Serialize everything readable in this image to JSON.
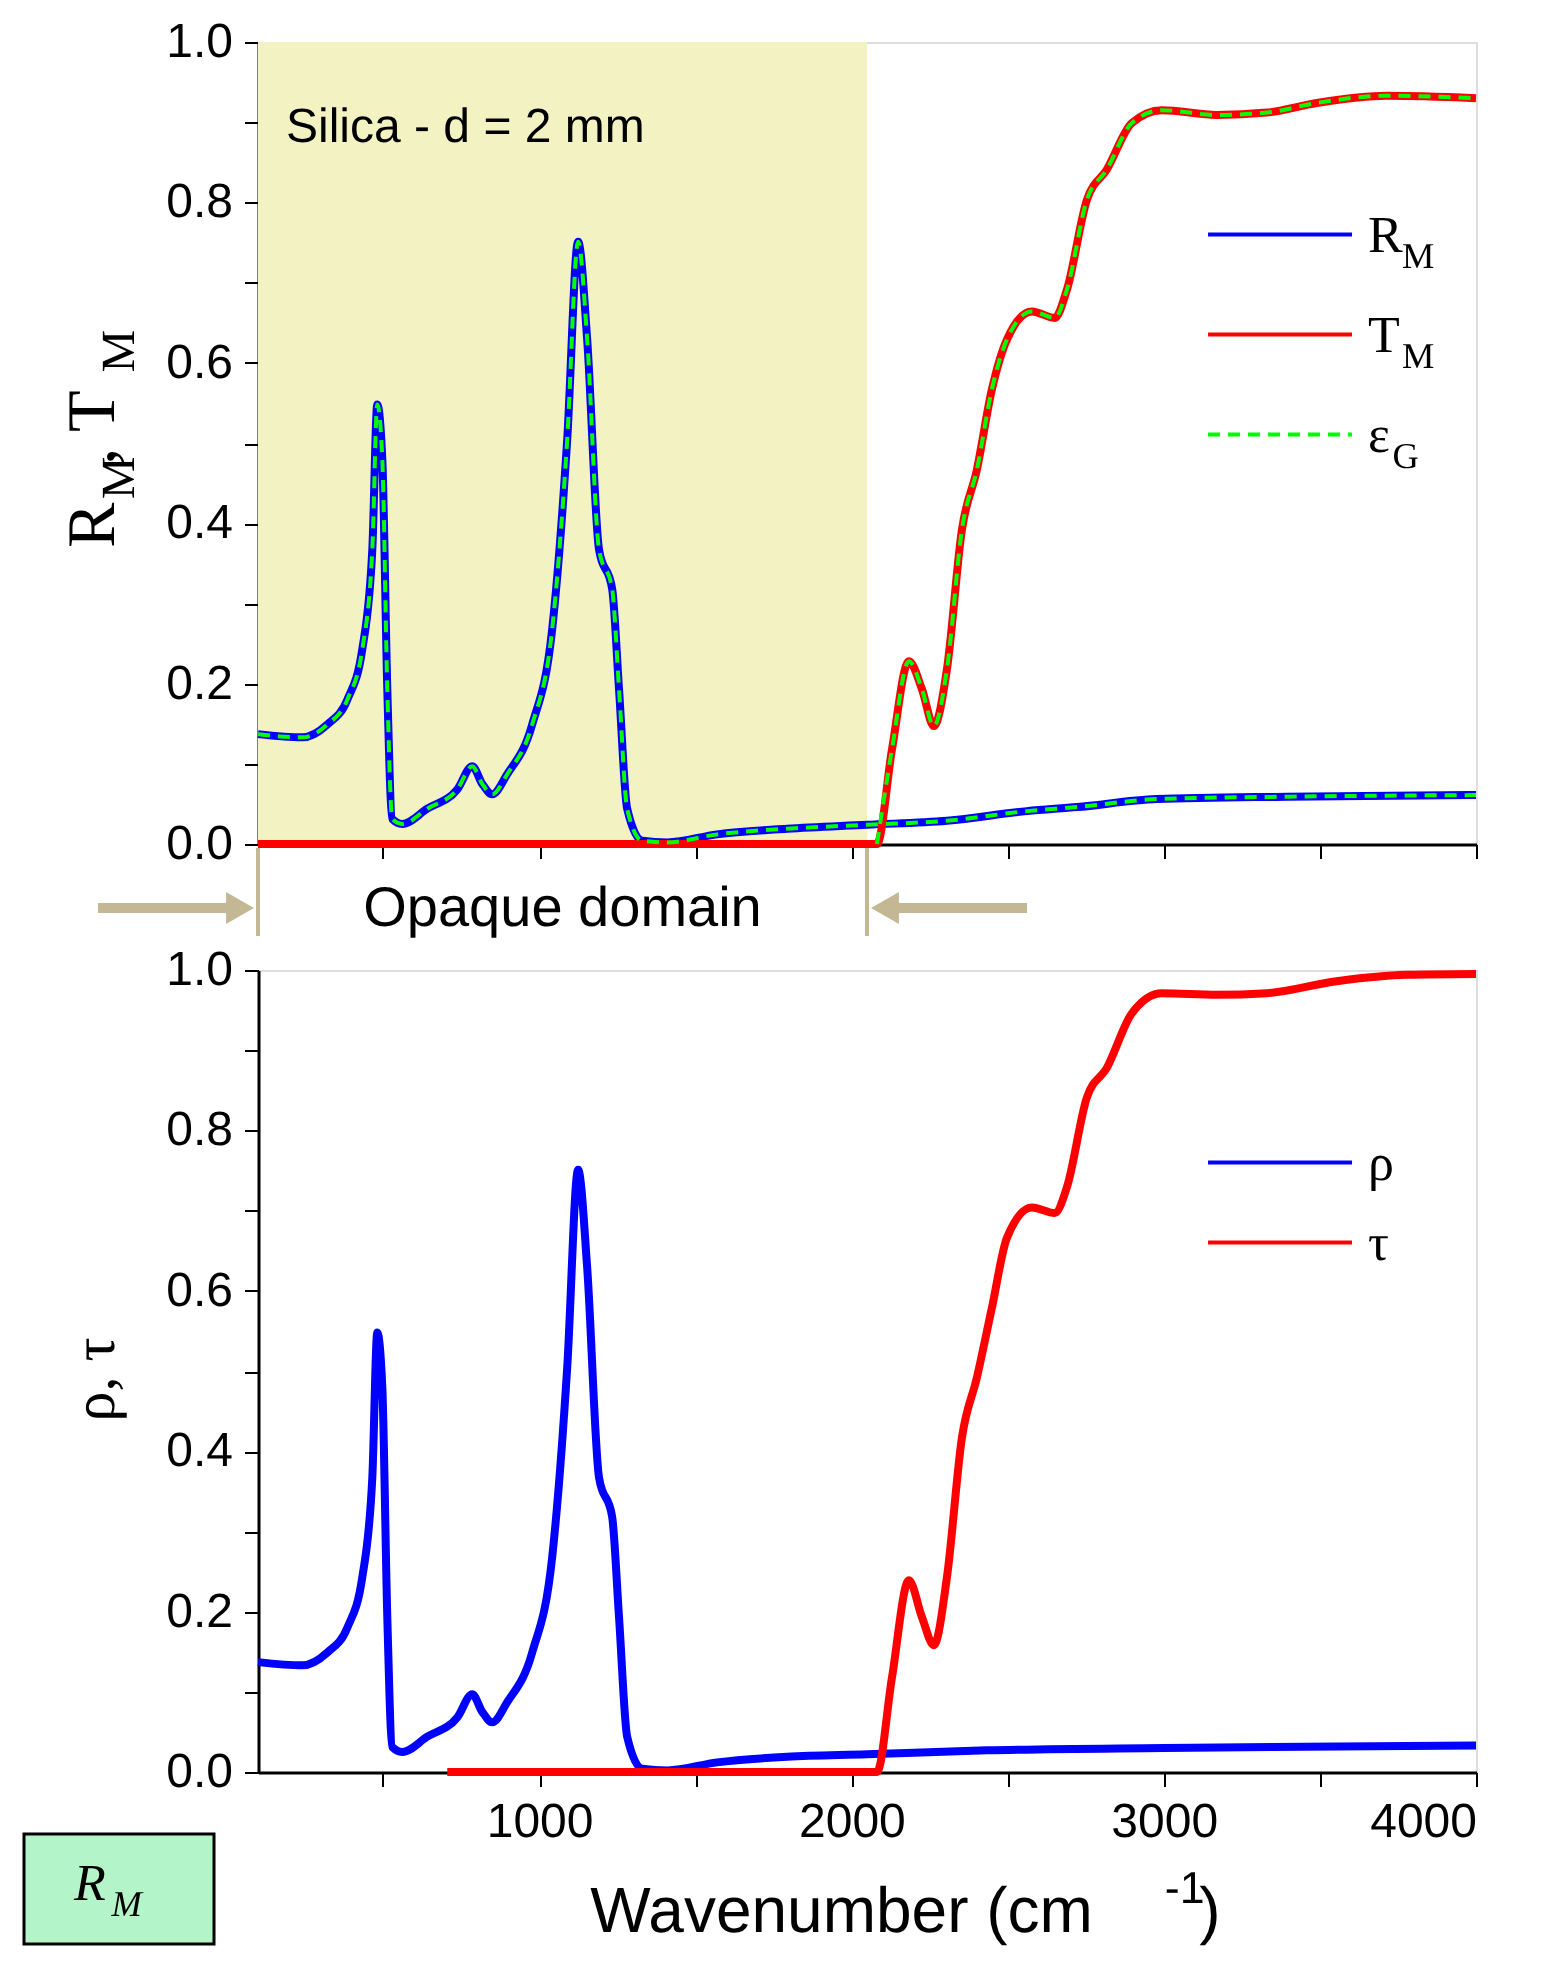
{
  "chart_data": [
    {
      "type": "line",
      "ylabel": "R$_{M}$, T$_{M}$",
      "legend": "right",
      "tick_labels": "y",
      "grid": false,
      "xlim": [
        100,
        4000
      ],
      "xticks": [
        {
          "value": 500,
          "label": null
        },
        {
          "value": 1000,
          "label": null
        },
        {
          "value": 1500,
          "label": null
        },
        {
          "value": 2000,
          "label": null
        },
        {
          "value": 2500,
          "label": null
        },
        {
          "value": 3000,
          "label": null
        },
        {
          "value": 3500,
          "label": null
        },
        {
          "value": 4000,
          "label": null
        }
      ],
      "ylim": [
        0,
        1
      ],
      "yticks": [
        {
          "value": 0,
          "label": "0.0"
        },
        {
          "value": 0.1,
          "label": null
        },
        {
          "value": 0.2,
          "label": "0.2"
        },
        {
          "value": 0.3,
          "label": null
        },
        {
          "value": 0.4,
          "label": "0.4"
        },
        {
          "value": 0.5,
          "label": null
        },
        {
          "value": 0.6,
          "label": "0.6"
        },
        {
          "value": 0.7,
          "label": null
        },
        {
          "value": 0.8,
          "label": "0.8"
        },
        {
          "value": 0.9,
          "label": null
        },
        {
          "value": 1,
          "label": "1.0"
        }
      ],
      "bands": [
        {
          "axis": "x",
          "from": 100,
          "to": 2050,
          "label": "Opaque domain",
          "color": "#f2f2c2"
        }
      ],
      "annotations": [
        "Silica - d = 2 mm"
      ],
      "series": [
        {
          "name": "R$_{M}$",
          "color": "#0000ff",
          "line_style": "solid",
          "x": [
            100,
            242,
            322,
            386,
            434,
            466,
            482,
            498,
            514,
            530,
            562,
            642,
            738,
            786,
            818,
            850,
            898,
            978,
            1042,
            1090,
            1125,
            1154,
            1192,
            1234,
            1256,
            1282,
            1330,
            1410,
            1570,
            1794,
            2050,
            2306,
            2562,
            2722,
            2978,
            3394,
            4000
          ],
          "values": [
            0.137,
            0.133,
            0.149,
            0.18,
            0.243,
            0.367,
            0.548,
            0.48,
            0.193,
            0.031,
            0.025,
            0.044,
            0.068,
            0.097,
            0.075,
            0.062,
            0.087,
            0.149,
            0.268,
            0.504,
            0.751,
            0.629,
            0.367,
            0.318,
            0.193,
            0.044,
            0.004,
            0.002,
            0.012,
            0.019,
            0.024,
            0.029,
            0.041,
            0.046,
            0.056,
            0.059,
            0.061
          ]
        },
        {
          "name": "T$_{M}$",
          "color": "#ff0000",
          "line_style": "solid",
          "x": [
            100,
            2082,
            2130,
            2184,
            2226,
            2264,
            2306,
            2354,
            2402,
            2450,
            2498,
            2578,
            2651,
            2690,
            2754,
            2818,
            2898,
            2994,
            3170,
            3330,
            3490,
            3714,
            4000
          ],
          "values": [
            0,
            0,
            0.118,
            0.228,
            0.193,
            0.147,
            0.218,
            0.392,
            0.467,
            0.567,
            0.629,
            0.664,
            0.656,
            0.691,
            0.803,
            0.841,
            0.899,
            0.915,
            0.909,
            0.912,
            0.924,
            0.933,
            0.93
          ]
        },
        {
          "name": "ε$_{G}$",
          "color": "#00ff00",
          "line_style": "dashed",
          "x": [
            100,
            242,
            322,
            386,
            434,
            466,
            482,
            498,
            514,
            530,
            562,
            642,
            738,
            786,
            818,
            850,
            898,
            978,
            1042,
            1090,
            1125,
            1154,
            1192,
            1234,
            1256,
            1282,
            1330,
            1410,
            1570,
            1794,
            2050,
            2306,
            2562,
            2722,
            2978,
            3394,
            4000
          ],
          "values": [
            0.137,
            0.133,
            0.149,
            0.18,
            0.243,
            0.367,
            0.548,
            0.48,
            0.193,
            0.031,
            0.025,
            0.044,
            0.068,
            0.097,
            0.075,
            0.062,
            0.087,
            0.149,
            0.268,
            0.504,
            0.751,
            0.629,
            0.367,
            0.318,
            0.193,
            0.044,
            0.004,
            0.002,
            0.012,
            0.019,
            0.024,
            0.029,
            0.041,
            0.046,
            0.056,
            0.059,
            0.061
          ]
        },
        {
          "color": "#00ff00",
          "line_style": "dashed",
          "x": [
            2082,
            2130,
            2184,
            2226,
            2264,
            2306,
            2354,
            2402,
            2450,
            2498,
            2578,
            2651,
            2690,
            2754,
            2818,
            2898,
            2994,
            3170,
            3330,
            3490,
            3714,
            4000
          ],
          "values": [
            0,
            0.118,
            0.228,
            0.193,
            0.147,
            0.218,
            0.392,
            0.467,
            0.567,
            0.629,
            0.664,
            0.656,
            0.691,
            0.803,
            0.841,
            0.899,
            0.915,
            0.909,
            0.912,
            0.924,
            0.933,
            0.93
          ]
        }
      ]
    },
    {
      "type": "line",
      "xlabel": "Wavenumber (cm$^{-1}$)",
      "ylabel": "ρ, τ",
      "legend": "right",
      "grid": false,
      "xlim": [
        100,
        4000
      ],
      "xticks": [
        {
          "value": 500,
          "label": null
        },
        1000,
        {
          "value": 1500,
          "label": null
        },
        2000,
        {
          "value": 2500,
          "label": null
        },
        3000,
        {
          "value": 3500,
          "label": null
        },
        4000
      ],
      "ylim": [
        0,
        1
      ],
      "yticks": [
        {
          "value": 0,
          "label": "0.0"
        },
        {
          "value": 0.1,
          "label": null
        },
        {
          "value": 0.2,
          "label": "0.2"
        },
        {
          "value": 0.3,
          "label": null
        },
        {
          "value": 0.4,
          "label": "0.4"
        },
        {
          "value": 0.5,
          "label": null
        },
        {
          "value": 0.6,
          "label": "0.6"
        },
        {
          "value": 0.7,
          "label": null
        },
        {
          "value": 0.8,
          "label": "0.8"
        },
        {
          "value": 0.9,
          "label": null
        },
        {
          "value": 1,
          "label": "1.0"
        }
      ],
      "annotations": [
        "R$_{M}$"
      ],
      "series": [
        {
          "name": "ρ",
          "color": "#0000ff",
          "line_style": "solid",
          "x": [
            100,
            242,
            322,
            386,
            434,
            466,
            482,
            498,
            514,
            530,
            562,
            642,
            738,
            786,
            818,
            850,
            898,
            978,
            1042,
            1090,
            1125,
            1154,
            1192,
            1234,
            1256,
            1282,
            1330,
            1410,
            1570,
            1794,
            2050,
            2434,
            3000,
            4000
          ],
          "values": [
            0.137,
            0.133,
            0.149,
            0.18,
            0.243,
            0.367,
            0.548,
            0.48,
            0.193,
            0.031,
            0.025,
            0.044,
            0.068,
            0.097,
            0.075,
            0.062,
            0.087,
            0.149,
            0.268,
            0.504,
            0.751,
            0.629,
            0.367,
            0.318,
            0.193,
            0.044,
            0.004,
            0.002,
            0.012,
            0.019,
            0.022,
            0.027,
            0.03,
            0.033
          ]
        },
        {
          "name": "τ",
          "color": "#ff0000",
          "line_style": "solid",
          "x": [
            706,
            2082,
            2130,
            2184,
            2226,
            2264,
            2306,
            2354,
            2402,
            2450,
            2498,
            2578,
            2651,
            2690,
            2754,
            2818,
            2898,
            2994,
            3170,
            3330,
            3554,
            3778,
            4000
          ],
          "values": [
            0,
            0,
            0.118,
            0.239,
            0.193,
            0.158,
            0.243,
            0.417,
            0.492,
            0.579,
            0.666,
            0.704,
            0.697,
            0.729,
            0.841,
            0.878,
            0.946,
            0.971,
            0.969,
            0.971,
            0.986,
            0.994,
            0.995
          ]
        }
      ]
    }
  ]
}
